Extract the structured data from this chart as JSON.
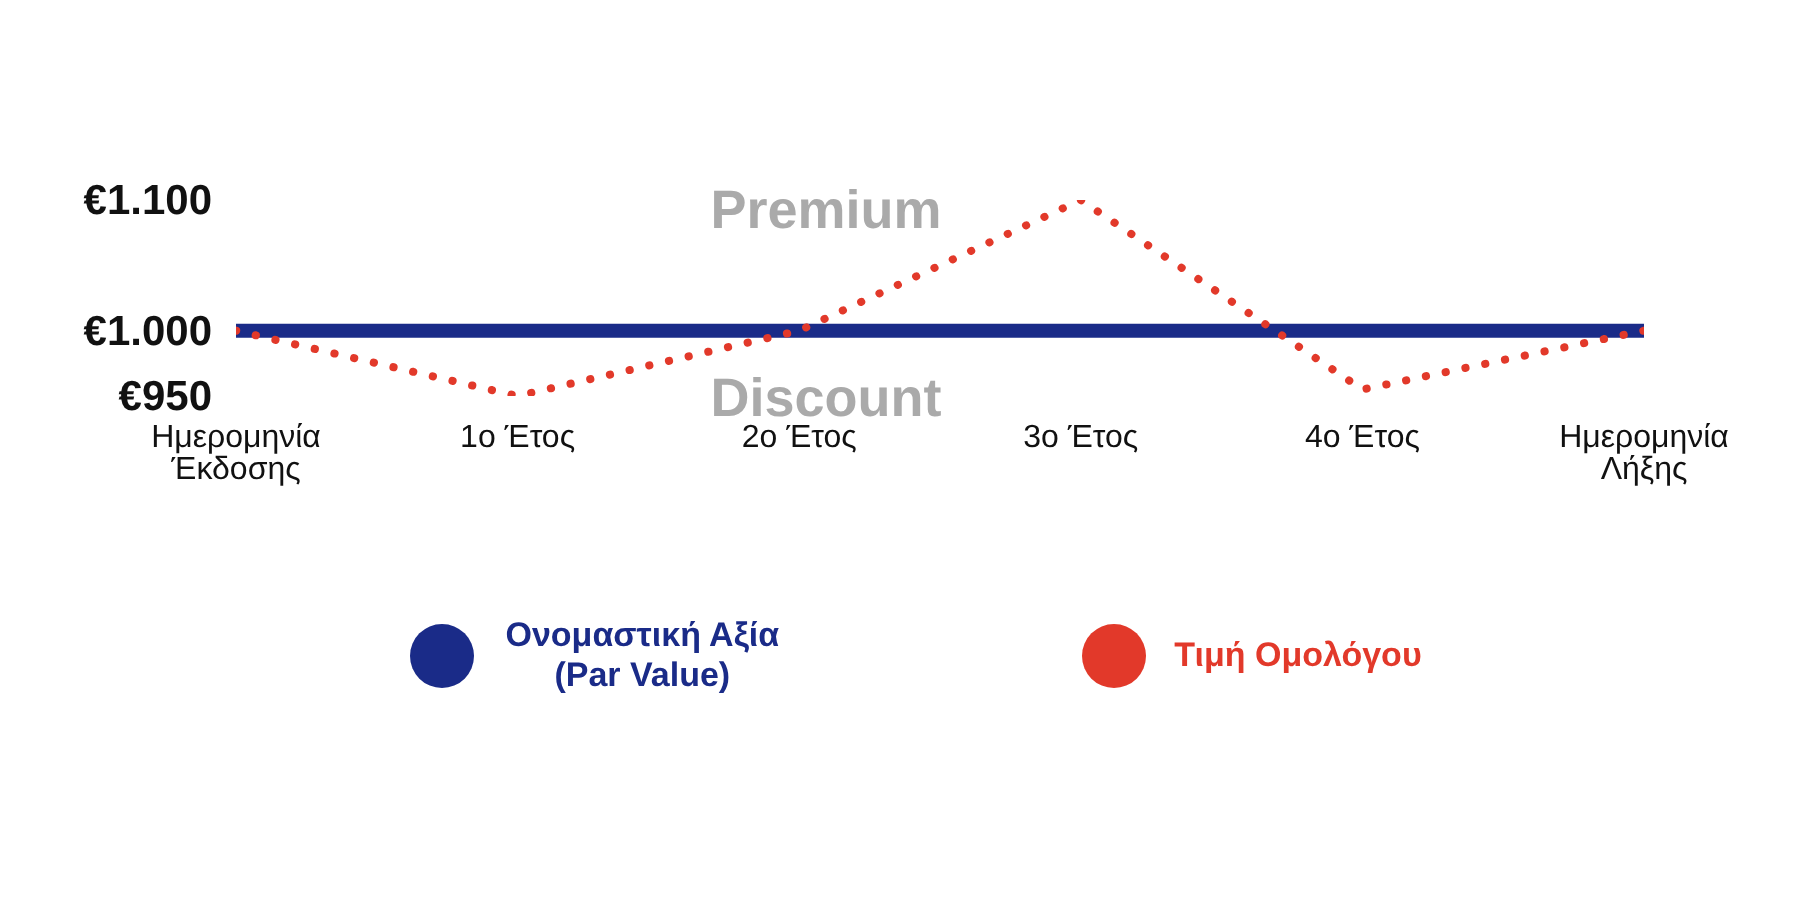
{
  "chart_data": {
    "type": "line",
    "categories": [
      "Ημερομηνία Έκδοσης",
      "1ο Έτος",
      "2ο Έτος",
      "3ο Έτος",
      "4ο Έτος",
      "Ημερομηνία Λήξης"
    ],
    "series": [
      {
        "name": "Ονομαστική Αξία (Par Value)",
        "color": "#1a2b88",
        "values": [
          1000,
          1000,
          1000,
          1000,
          1000,
          1000
        ],
        "line_style": "solid"
      },
      {
        "name": "Τιμή Ομολόγου",
        "color": "#e2392a",
        "values": [
          1000,
          950,
          1000,
          1100,
          955,
          1000
        ],
        "line_style": "dotted"
      }
    ],
    "ylim": [
      950,
      1100
    ],
    "yticks": [
      {
        "value": 950,
        "label": "€950"
      },
      {
        "value": 1000,
        "label": "€1.000"
      },
      {
        "value": 1100,
        "label": "€1.100"
      }
    ],
    "annotations": [
      "Premium",
      "Discount"
    ],
    "grid": false,
    "legend": "bottom",
    "marker": "none"
  }
}
